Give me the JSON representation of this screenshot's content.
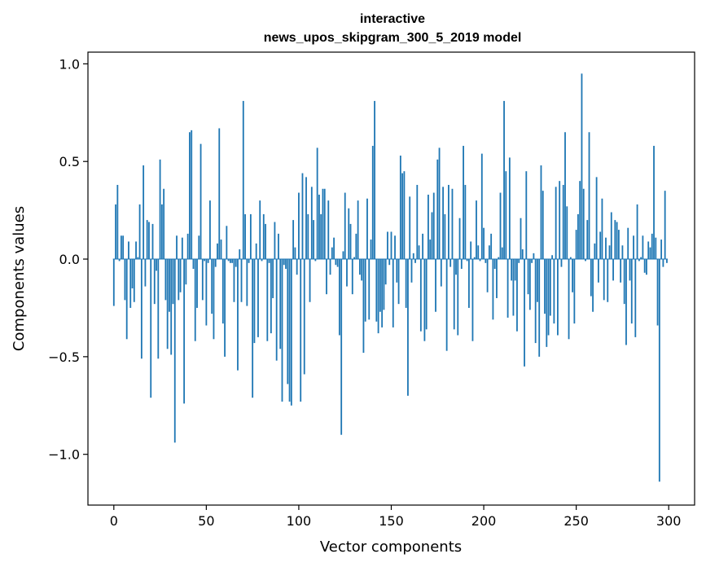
{
  "chart_data": {
    "type": "bar",
    "title": [
      "interactive",
      "news_upos_skipgram_300_5_2019 model"
    ],
    "xlabel": "Vector components",
    "ylabel": "Components values",
    "xlim": [
      -14,
      314
    ],
    "ylim": [
      -1.26,
      1.06
    ],
    "xticks": [
      0,
      50,
      100,
      150,
      200,
      250,
      300
    ],
    "xtick_labels": [
      "0",
      "50",
      "100",
      "150",
      "200",
      "250",
      "300"
    ],
    "yticks": [
      -1.0,
      -0.5,
      0.0,
      0.5,
      1.0
    ],
    "ytick_labels": [
      "−1.0",
      "−0.5",
      "0.0",
      "0.5",
      "1.0"
    ],
    "grid": false,
    "bar_color": "#1f77b4",
    "x": "0..299 (vector component index)",
    "values": [
      -0.24,
      0.28,
      0.38,
      -0.01,
      0.12,
      0.12,
      -0.21,
      -0.41,
      0.09,
      -0.25,
      -0.15,
      -0.22,
      0.09,
      0.01,
      0.28,
      -0.51,
      0.48,
      -0.14,
      0.2,
      0.19,
      -0.71,
      0.18,
      -0.23,
      -0.06,
      -0.51,
      0.51,
      0.28,
      0.36,
      -0.21,
      -0.46,
      -0.27,
      -0.49,
      -0.23,
      -0.94,
      0.12,
      -0.21,
      -0.17,
      0.11,
      -0.74,
      -0.13,
      0.13,
      0.65,
      0.66,
      -0.05,
      -0.42,
      -0.25,
      0.12,
      0.59,
      -0.21,
      -0.01,
      -0.34,
      -0.02,
      0.3,
      -0.28,
      -0.41,
      -0.04,
      0.08,
      0.67,
      0.1,
      -0.33,
      -0.5,
      0.17,
      -0.01,
      -0.02,
      -0.02,
      -0.22,
      -0.04,
      -0.57,
      0.05,
      -0.22,
      0.81,
      0.23,
      -0.24,
      -0.02,
      0.23,
      -0.71,
      -0.43,
      0.08,
      -0.4,
      0.3,
      -0.01,
      0.23,
      0.18,
      -0.42,
      -0.02,
      -0.38,
      -0.2,
      0.19,
      -0.52,
      0.13,
      -0.46,
      -0.73,
      -0.03,
      -0.05,
      -0.64,
      -0.73,
      -0.75,
      0.2,
      0.06,
      -0.08,
      0.34,
      -0.73,
      0.44,
      -0.59,
      0.42,
      0.23,
      -0.22,
      0.37,
      0.2,
      -0.01,
      0.57,
      0.33,
      0.23,
      0.36,
      0.36,
      -0.18,
      0.3,
      -0.08,
      0.06,
      0.11,
      -0.03,
      -0.04,
      -0.39,
      -0.9,
      0.04,
      0.34,
      -0.14,
      0.26,
      0.18,
      -0.18,
      0.01,
      0.13,
      0.3,
      -0.08,
      -0.11,
      -0.48,
      -0.32,
      0.31,
      -0.31,
      0.1,
      0.58,
      0.81,
      -0.32,
      -0.38,
      -0.27,
      -0.35,
      -0.26,
      -0.13,
      0.14,
      -0.03,
      0.14,
      -0.35,
      0.12,
      -0.12,
      -0.23,
      0.53,
      0.44,
      0.45,
      -0.25,
      -0.7,
      0.32,
      -0.12,
      0.03,
      -0.02,
      0.38,
      0.07,
      -0.37,
      0.13,
      -0.42,
      -0.36,
      0.33,
      0.1,
      0.24,
      0.34,
      -0.27,
      0.51,
      0.57,
      -0.14,
      0.37,
      0.23,
      -0.47,
      0.38,
      -0.04,
      0.36,
      -0.36,
      -0.08,
      -0.39,
      0.21,
      -0.05,
      0.58,
      0.38,
      -0.01,
      -0.25,
      0.09,
      -0.42,
      0.01,
      0.3,
      0.07,
      -0.01,
      0.54,
      0.16,
      -0.02,
      -0.17,
      0.07,
      0.13,
      -0.31,
      -0.05,
      -0.2,
      0.01,
      0.34,
      0.06,
      0.81,
      0.45,
      -0.3,
      0.52,
      -0.11,
      -0.29,
      -0.11,
      -0.37,
      -0.02,
      0.21,
      0.05,
      -0.55,
      0.45,
      -0.18,
      -0.26,
      -0.02,
      0.03,
      -0.43,
      -0.22,
      -0.5,
      0.48,
      0.35,
      -0.28,
      -0.45,
      -0.39,
      -0.29,
      0.02,
      -0.33,
      0.37,
      -0.39,
      0.4,
      -0.04,
      0.38,
      0.65,
      0.27,
      -0.41,
      0.01,
      -0.17,
      -0.33,
      0.15,
      0.23,
      0.4,
      0.95,
      0.36,
      -0.01,
      0.2,
      0.65,
      -0.19,
      -0.27,
      0.08,
      0.42,
      -0.12,
      0.14,
      0.31,
      -0.21,
      0.11,
      -0.22,
      0.07,
      0.24,
      -0.11,
      0.2,
      0.19,
      0.15,
      -0.12,
      0.07,
      -0.23,
      -0.44,
      0.16,
      -0.11,
      -0.33,
      0.12,
      -0.4,
      0.28,
      -0.01,
      0.01,
      0.12,
      -0.07,
      -0.08,
      0.09,
      0.06,
      0.13,
      0.58,
      0.11,
      -0.34,
      -1.14,
      0.1,
      -0.04,
      0.35,
      -0.02
    ]
  }
}
